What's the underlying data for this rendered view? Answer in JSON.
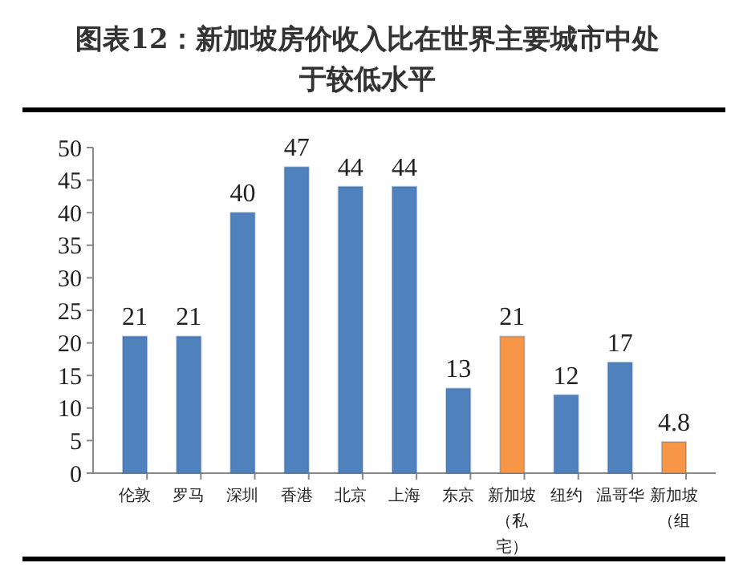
{
  "chart_data": {
    "type": "bar",
    "title": "图表12：新加坡房价收入比在世界主要城市中处于较低水平",
    "categories": [
      "伦敦",
      "罗马",
      "深圳",
      "香港",
      "北京",
      "上海",
      "东京",
      "新加坡（私宅）",
      "纽约",
      "温哥华",
      "新加坡（组"
    ],
    "values": [
      21,
      21,
      40,
      47,
      44,
      44,
      13,
      21,
      12,
      17,
      4.8
    ],
    "colors": [
      "#4f81bd",
      "#4f81bd",
      "#4f81bd",
      "#4f81bd",
      "#4f81bd",
      "#4f81bd",
      "#4f81bd",
      "#f79646",
      "#4f81bd",
      "#4f81bd",
      "#f79646"
    ],
    "ylim": [
      0,
      50
    ],
    "yticks": [
      0,
      5,
      10,
      15,
      20,
      25,
      30,
      35,
      40,
      45,
      50
    ],
    "data_labels": true
  }
}
